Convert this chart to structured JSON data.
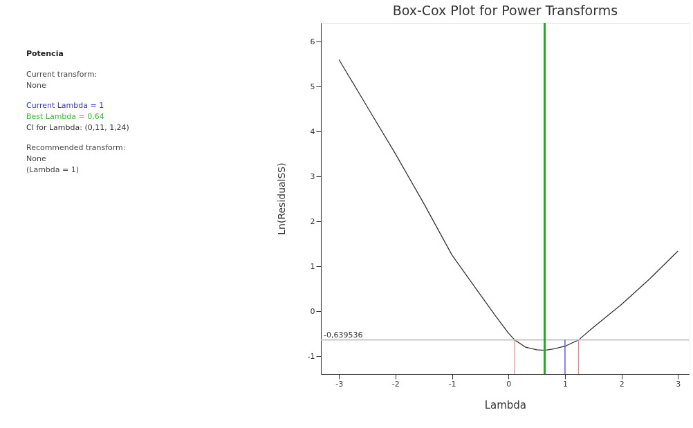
{
  "chart_data": {
    "type": "line",
    "title": "Box-Cox Plot for Power Transforms",
    "xlabel": "Lambda",
    "ylabel": "Ln(ResidualSS)",
    "x": [
      -3,
      -2.5,
      -2,
      -1.5,
      -1,
      -0.5,
      -0.25,
      0,
      0.11,
      0.3,
      0.5,
      0.64,
      0.8,
      1,
      1.24,
      1.5,
      2,
      2.5,
      3
    ],
    "series": [
      {
        "color": "#333333",
        "values": [
          5.6,
          4.55,
          3.5,
          2.4,
          1.25,
          0.37,
          -0.07,
          -0.49,
          -0.64,
          -0.8,
          -0.86,
          -0.87,
          -0.84,
          -0.78,
          -0.64,
          -0.36,
          0.15,
          0.72,
          1.34
        ]
      }
    ],
    "xlim": [
      -3.32,
      3.2
    ],
    "ylim": [
      -1.4,
      6.42
    ],
    "xticks": [
      -3,
      -2,
      -1,
      0,
      1,
      2,
      3
    ],
    "yticks": [
      -1,
      0,
      1,
      2,
      3,
      4,
      5,
      6
    ],
    "ref_lines": [
      {
        "axis": "y",
        "value": -0.639536,
        "label": "-0,639536",
        "color": "#c8c8c8"
      },
      {
        "axis": "x",
        "value": 0.64,
        "color": "#22aa22"
      },
      {
        "axis": "x",
        "value": 1,
        "color": "#3333dd"
      },
      {
        "axis": "x",
        "value": 0.11,
        "color": "#f08080"
      },
      {
        "axis": "x",
        "value": 1.24,
        "color": "#f08080"
      }
    ],
    "annotations": [
      "Potencia",
      "Current transform:",
      "None",
      "Current Lambda = 1",
      "Best Lambda = 0,64",
      "CI for Lambda: (0,11, 1,24)",
      "Recommended transform:",
      "None",
      "(Lambda = 1)"
    ],
    "grid": false,
    "marker": "none",
    "line_style": "solid"
  }
}
